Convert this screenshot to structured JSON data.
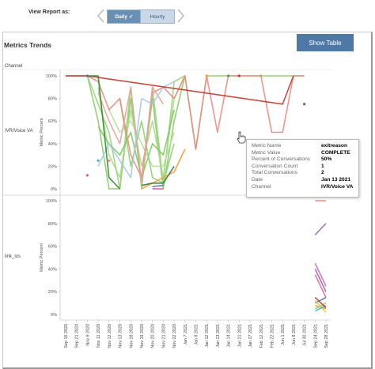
{
  "header": {
    "view_label": "View Report as:",
    "daily_label": "Daily",
    "hourly_label": "Hourly"
  },
  "panel": {
    "title": "Metrics Trends",
    "show_table_label": "Show Table",
    "channel_header": "Channel"
  },
  "chart_data": {
    "type": "line",
    "title": "Metrics Trends",
    "ylabel": "Metric Percent",
    "ylim": [
      0,
      100
    ],
    "y_ticks": [
      "100%",
      "80%",
      "60%",
      "40%",
      "20%",
      "0%"
    ],
    "x_categories": [
      "Sep 16 2020",
      "Sep 21 2020",
      "Nov 9 2020",
      "Nov 11 2020",
      "Nov 12 2020",
      "Nov 13 2020",
      "Nov 18 2020",
      "Nov 19 2020",
      "Nov 20 2020",
      "Nov 21 2020",
      "Nov 22 2020",
      "Jan 7 2021",
      "Jan 8 2021",
      "Jan 12 2021",
      "Jan 13 2021",
      "Jan 14 2021",
      "Jan 21 2021",
      "Jan 27 2021",
      "Feb 12 2021",
      "Feb 22 2021",
      "Jun 1 2021",
      "Jun 8 2021",
      "Jul 30 2021",
      "Sep 24 2021",
      "Sep 28 2021"
    ],
    "panes": [
      {
        "channel": "IVR/Voice VA",
        "series": [
          {
            "color": "#88cc66",
            "points": [
              [
                0,
                100
              ],
              [
                2,
                100
              ],
              [
                3,
                60
              ],
              [
                4,
                0
              ],
              [
                5,
                0
              ],
              [
                6,
                80
              ],
              [
                7,
                5
              ],
              [
                8,
                80
              ],
              [
                9,
                0
              ],
              [
                10,
                60
              ],
              [
                11,
                100
              ],
              [
                12,
                35
              ],
              [
                13,
                100
              ],
              [
                15,
                100
              ],
              [
                16,
                100
              ],
              [
                17,
                100
              ],
              [
                18,
                100
              ],
              [
                21,
                100
              ],
              [
                22,
                100
              ]
            ]
          },
          {
            "color": "#99d477",
            "points": [
              [
                2,
                100
              ],
              [
                4,
                50
              ],
              [
                5,
                0
              ],
              [
                6,
                90
              ],
              [
                7,
                0
              ],
              [
                8,
                90
              ],
              [
                9,
                5
              ],
              [
                10,
                95
              ],
              [
                11,
                100
              ]
            ]
          },
          {
            "color": "#a7dc8a",
            "points": [
              [
                3,
                90
              ],
              [
                4,
                30
              ],
              [
                5,
                10
              ],
              [
                6,
                70
              ],
              [
                7,
                20
              ],
              [
                8,
                60
              ],
              [
                9,
                10
              ],
              [
                10,
                80
              ],
              [
                11,
                100
              ]
            ]
          },
          {
            "color": "#7fc85f",
            "points": [
              [
                3,
                55
              ],
              [
                4,
                40
              ],
              [
                5,
                30
              ],
              [
                6,
                50
              ],
              [
                7,
                10
              ],
              [
                8,
                40
              ],
              [
                9,
                30
              ],
              [
                10,
                70
              ]
            ]
          },
          {
            "color": "#b5e09c",
            "points": [
              [
                4,
                70
              ],
              [
                5,
                50
              ],
              [
                6,
                60
              ],
              [
                7,
                40
              ],
              [
                8,
                20
              ],
              [
                9,
                20
              ],
              [
                10,
                50
              ]
            ]
          },
          {
            "color": "#8fd070",
            "points": [
              [
                5,
                80
              ],
              [
                6,
                20
              ],
              [
                7,
                60
              ],
              [
                8,
                10
              ],
              [
                9,
                5
              ],
              [
                10,
                40
              ]
            ]
          },
          {
            "color": "#f08a80",
            "points": [
              [
                0,
                100
              ],
              [
                2,
                100
              ],
              [
                3,
                95
              ],
              [
                4,
                70
              ],
              [
                5,
                80
              ],
              [
                6,
                30
              ],
              [
                7,
                10
              ],
              [
                8,
                85
              ],
              [
                9,
                90
              ],
              [
                10,
                80
              ],
              [
                11,
                100
              ],
              [
                12,
                35
              ],
              [
                13,
                100
              ],
              [
                14,
                50
              ],
              [
                15,
                100
              ],
              [
                16,
                100
              ],
              [
                17,
                100
              ],
              [
                18,
                100
              ],
              [
                19,
                50
              ],
              [
                20,
                50
              ],
              [
                21,
                100
              ],
              [
                22,
                100
              ]
            ]
          },
          {
            "color": "#e8a29a",
            "points": [
              [
                3,
                85
              ],
              [
                4,
                60
              ],
              [
                5,
                40
              ],
              [
                6,
                90
              ],
              [
                7,
                5
              ],
              [
                8,
                90
              ],
              [
                9,
                75
              ]
            ]
          },
          {
            "color": "#a6c8e8",
            "points": [
              [
                3,
                20
              ],
              [
                4,
                40
              ],
              [
                5,
                25
              ],
              [
                6,
                10
              ],
              [
                7,
                80
              ],
              [
                8,
                75
              ],
              [
                9,
                90
              ],
              [
                10,
                95
              ]
            ]
          },
          {
            "color": "#c0392b",
            "points": [
              [
                0,
                100
              ],
              [
                2,
                100
              ],
              [
                20,
                75
              ],
              [
                21,
                100
              ]
            ]
          },
          {
            "color": "#2e8b2e",
            "points": [
              [
                2,
                100
              ],
              [
                3,
                100
              ],
              [
                4,
                10
              ],
              [
                5,
                0
              ]
            ]
          },
          {
            "color": "#f0a030",
            "points": [
              [
                7,
                0
              ],
              [
                8,
                5
              ],
              [
                9,
                10
              ],
              [
                10,
                15
              ],
              [
                11,
                35
              ]
            ]
          },
          {
            "color": "#3a7a3a",
            "points": [
              [
                7,
                3
              ],
              [
                8,
                5
              ],
              [
                9,
                5
              ],
              [
                10,
                20
              ]
            ]
          },
          {
            "color": "#4e79a7",
            "points": [
              [
                8,
                2
              ],
              [
                9,
                3
              ]
            ]
          },
          {
            "color": "#d65a9a",
            "points": [
              [
                8,
                0
              ],
              [
                9,
                0
              ]
            ]
          }
        ],
        "markers": [
          {
            "x": 2,
            "y": 100,
            "color": "#4e79a7"
          },
          {
            "x": 2,
            "y": 12,
            "color": "#d65a9a"
          },
          {
            "x": 3,
            "y": 25,
            "color": "#4ab3c4"
          },
          {
            "x": 4,
            "y": 25,
            "color": "#f08a80"
          },
          {
            "x": 13,
            "y": 100,
            "color": "#f0a030"
          },
          {
            "x": 15,
            "y": 100,
            "color": "#4e9a4e"
          },
          {
            "x": 16,
            "y": 100,
            "color": "#c0392b"
          },
          {
            "x": 18,
            "y": 100,
            "color": "#c9a84a"
          },
          {
            "x": 22,
            "y": 75,
            "color": "#7b4fb0"
          }
        ]
      },
      {
        "channel": "link_ios",
        "series": [
          {
            "color": "#f08a80",
            "points": [
              [
                23,
                100
              ],
              [
                24,
                100
              ]
            ]
          },
          {
            "color": "#9c64b4",
            "points": [
              [
                23,
                70
              ],
              [
                24,
                80
              ]
            ]
          },
          {
            "color": "#c76fc0",
            "points": [
              [
                23,
                45
              ],
              [
                24,
                25
              ]
            ]
          },
          {
            "color": "#9c64b4",
            "points": [
              [
                23,
                40
              ],
              [
                24,
                20
              ]
            ]
          },
          {
            "color": "#e06aa8",
            "points": [
              [
                23,
                35
              ],
              [
                24,
                15
              ]
            ]
          },
          {
            "color": "#4e79a7",
            "points": [
              [
                23,
                10
              ],
              [
                24,
                15
              ]
            ]
          },
          {
            "color": "#f0a030",
            "points": [
              [
                23,
                8
              ],
              [
                24,
                5
              ]
            ]
          },
          {
            "color": "#88cc66",
            "points": [
              [
                23,
                5
              ],
              [
                24,
                10
              ]
            ]
          },
          {
            "color": "#e8c84a",
            "points": [
              [
                23,
                12
              ],
              [
                24,
                2
              ]
            ]
          },
          {
            "color": "#4ab3c4",
            "points": [
              [
                23,
                3
              ],
              [
                24,
                8
              ]
            ]
          },
          {
            "color": "#c0392b",
            "points": [
              [
                23,
                15
              ],
              [
                24,
                6
              ]
            ]
          }
        ],
        "markers": []
      }
    ]
  },
  "tooltip": {
    "rows": [
      {
        "key": "Metric Name",
        "value": "exitreason"
      },
      {
        "key": "Metric Value",
        "value": "COMPLETE"
      },
      {
        "key": "Percent of Conversations",
        "value": "50%"
      },
      {
        "key": "Conversation Count",
        "value": "1"
      },
      {
        "key": "Total Conversations",
        "value": "2"
      },
      {
        "key": "Date",
        "value": "Jan 13 2021"
      },
      {
        "key": "Channel",
        "value": "IVR/Voice VA"
      }
    ]
  }
}
